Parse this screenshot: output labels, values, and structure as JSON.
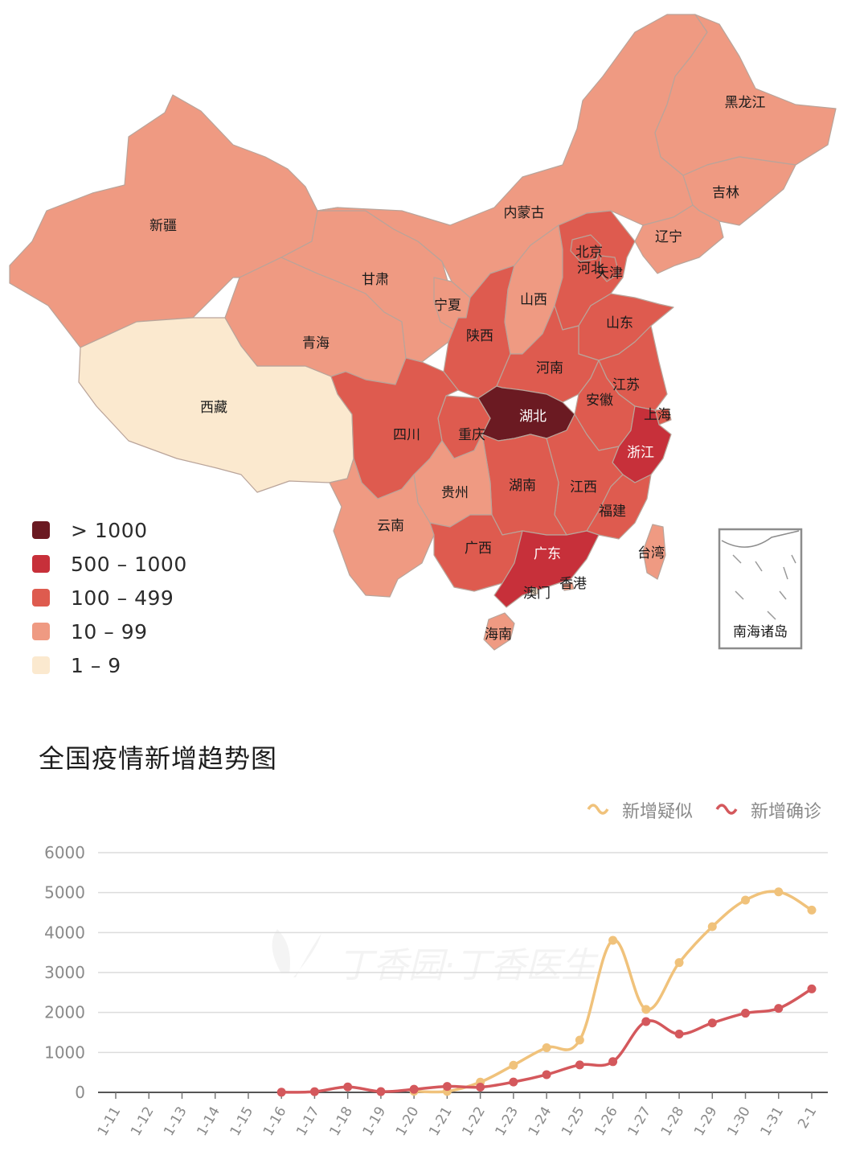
{
  "map": {
    "legend": [
      {
        "label": "> 1000",
        "color": "#6b1a22"
      },
      {
        "label": "500 – 1000",
        "color": "#c7303a"
      },
      {
        "label": "100 – 499",
        "color": "#de5b4f"
      },
      {
        "label": "10 – 99",
        "color": "#ef9a82"
      },
      {
        "label": "1 – 9",
        "color": "#fbe9cf"
      }
    ],
    "provinces": [
      {
        "name": "黑龙江",
        "tier": "10 – 99"
      },
      {
        "name": "吉林",
        "tier": "10 – 99"
      },
      {
        "name": "辽宁",
        "tier": "10 – 99"
      },
      {
        "name": "内蒙古",
        "tier": "10 – 99"
      },
      {
        "name": "新疆",
        "tier": "10 – 99"
      },
      {
        "name": "甘肃",
        "tier": "10 – 99"
      },
      {
        "name": "宁夏",
        "tier": "10 – 99"
      },
      {
        "name": "青海",
        "tier": "10 – 99"
      },
      {
        "name": "西藏",
        "tier": "1 – 9"
      },
      {
        "name": "北京",
        "tier": "100 – 499"
      },
      {
        "name": "天津",
        "tier": "100 – 499"
      },
      {
        "name": "河北",
        "tier": "100 – 499"
      },
      {
        "name": "山西",
        "tier": "10 – 99"
      },
      {
        "name": "陕西",
        "tier": "100 – 499"
      },
      {
        "name": "山东",
        "tier": "100 – 499"
      },
      {
        "name": "河南",
        "tier": "100 – 499"
      },
      {
        "name": "江苏",
        "tier": "100 – 499"
      },
      {
        "name": "安徽",
        "tier": "100 – 499"
      },
      {
        "name": "上海",
        "tier": "100 – 499"
      },
      {
        "name": "湖北",
        "tier": "> 1000"
      },
      {
        "name": "浙江",
        "tier": "500 – 1000"
      },
      {
        "name": "四川",
        "tier": "100 – 499"
      },
      {
        "name": "重庆",
        "tier": "100 – 499"
      },
      {
        "name": "贵州",
        "tier": "10 – 99"
      },
      {
        "name": "湖南",
        "tier": "100 – 499"
      },
      {
        "name": "江西",
        "tier": "100 – 499"
      },
      {
        "name": "福建",
        "tier": "100 – 499"
      },
      {
        "name": "云南",
        "tier": "10 – 99"
      },
      {
        "name": "广西",
        "tier": "100 – 499"
      },
      {
        "name": "广东",
        "tier": "500 – 1000"
      },
      {
        "name": "香港",
        "tier": "10 – 99"
      },
      {
        "name": "澳门",
        "tier": "1 – 9"
      },
      {
        "name": "台湾",
        "tier": "10 – 99"
      },
      {
        "name": "海南",
        "tier": "10 – 99"
      }
    ],
    "inset_label": "南海诸岛"
  },
  "trend_title": "全国疫情新增趋势图",
  "watermark": "丁香园·丁香医生",
  "chart_data": {
    "type": "line",
    "title": "全国疫情新增趋势图",
    "categories": [
      "1-11",
      "1-12",
      "1-13",
      "1-14",
      "1-15",
      "1-16",
      "1-17",
      "1-18",
      "1-19",
      "1-20",
      "1-21",
      "1-22",
      "1-23",
      "1-24",
      "1-25",
      "1-26",
      "1-27",
      "1-28",
      "1-29",
      "1-30",
      "1-31",
      "2-1"
    ],
    "series": [
      {
        "name": "新增疑似",
        "color": "#f0c27b",
        "values": [
          null,
          null,
          null,
          null,
          null,
          null,
          null,
          null,
          null,
          27,
          26,
          257,
          680,
          1118,
          1309,
          3806,
          2077,
          3248,
          4148,
          4812,
          5019,
          4562
        ]
      },
      {
        "name": "新增确诊",
        "color": "#d4585c",
        "values": [
          null,
          null,
          null,
          null,
          null,
          4,
          17,
          136,
          19,
          77,
          149,
          131,
          259,
          444,
          688,
          769,
          1771,
          1459,
          1737,
          1982,
          2102,
          2590
        ]
      }
    ],
    "ylim": [
      0,
      6000
    ],
    "yticks": [
      0,
      1000,
      2000,
      3000,
      4000,
      5000,
      6000
    ],
    "legend_position": "top-right",
    "grid": true
  }
}
